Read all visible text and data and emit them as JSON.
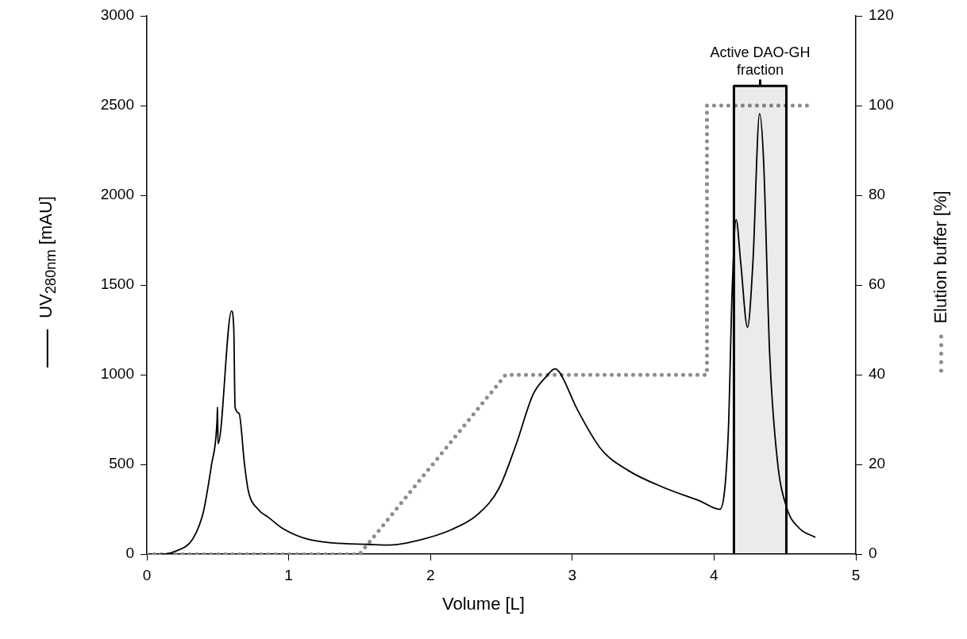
{
  "chart_data": {
    "type": "line",
    "xlabel": "Volume [L]",
    "ylabel": "UV$_{280nm}$ [mAU]",
    "y2label": "Elution buffer [%]",
    "xlim": [
      0,
      5
    ],
    "xticks": [
      0,
      1,
      2,
      3,
      4,
      5
    ],
    "ylim": [
      0,
      3000
    ],
    "yticks": [
      0,
      500,
      1000,
      1500,
      2000,
      2500,
      3000
    ],
    "y2lim": [
      0,
      120
    ],
    "y2ticks": [
      0,
      20,
      40,
      60,
      80,
      100,
      120
    ],
    "grid": false,
    "legend": false,
    "marker": "none",
    "series": [
      {
        "color": "#000000",
        "line_style": "solid",
        "x": [
          0.1,
          0.18,
          0.39,
          0.456,
          0.494,
          0.498,
          0.502,
          0.597,
          0.613,
          0.622,
          0.65,
          0.688,
          0.715,
          0.785,
          0.858,
          0.965,
          1.127,
          1.306,
          1.557,
          1.714,
          1.906,
          2.145,
          2.339,
          2.483,
          2.602,
          2.723,
          2.817,
          2.878,
          2.914,
          3.034,
          3.202,
          3.394,
          3.66,
          3.9,
          4.04,
          4.1,
          4.128,
          4.156,
          4.188,
          4.236,
          4.274,
          4.321,
          4.349,
          4.392,
          4.446,
          4.51,
          4.597,
          4.715
        ],
        "values": [
          0,
          10,
          210,
          500,
          730,
          820,
          615,
          1355,
          1255,
          820,
          785,
          505,
          355,
          250,
          205,
          140,
          85,
          63,
          55,
          51,
          76,
          136,
          226,
          367,
          607,
          889,
          990,
          1033,
          1009,
          809,
          587,
          467,
          367,
          297,
          250,
          670,
          1480,
          1865,
          1625,
          1265,
          1625,
          2455,
          2200,
          1120,
          525,
          265,
          148,
          94
        ]
      },
      {
        "color": "#8c8c8c",
        "line_style": "dotted",
        "axis": "y2",
        "x": [
          0,
          1.5,
          2.53,
          3.95,
          3.95,
          4.7
        ],
        "values": [
          0,
          0,
          40,
          40,
          100,
          100
        ]
      }
    ],
    "bands": [
      {
        "axis": "x",
        "from": 4.14,
        "to": 4.51,
        "label": "Active DAO-GH fraction",
        "color": "#000000"
      }
    ]
  }
}
